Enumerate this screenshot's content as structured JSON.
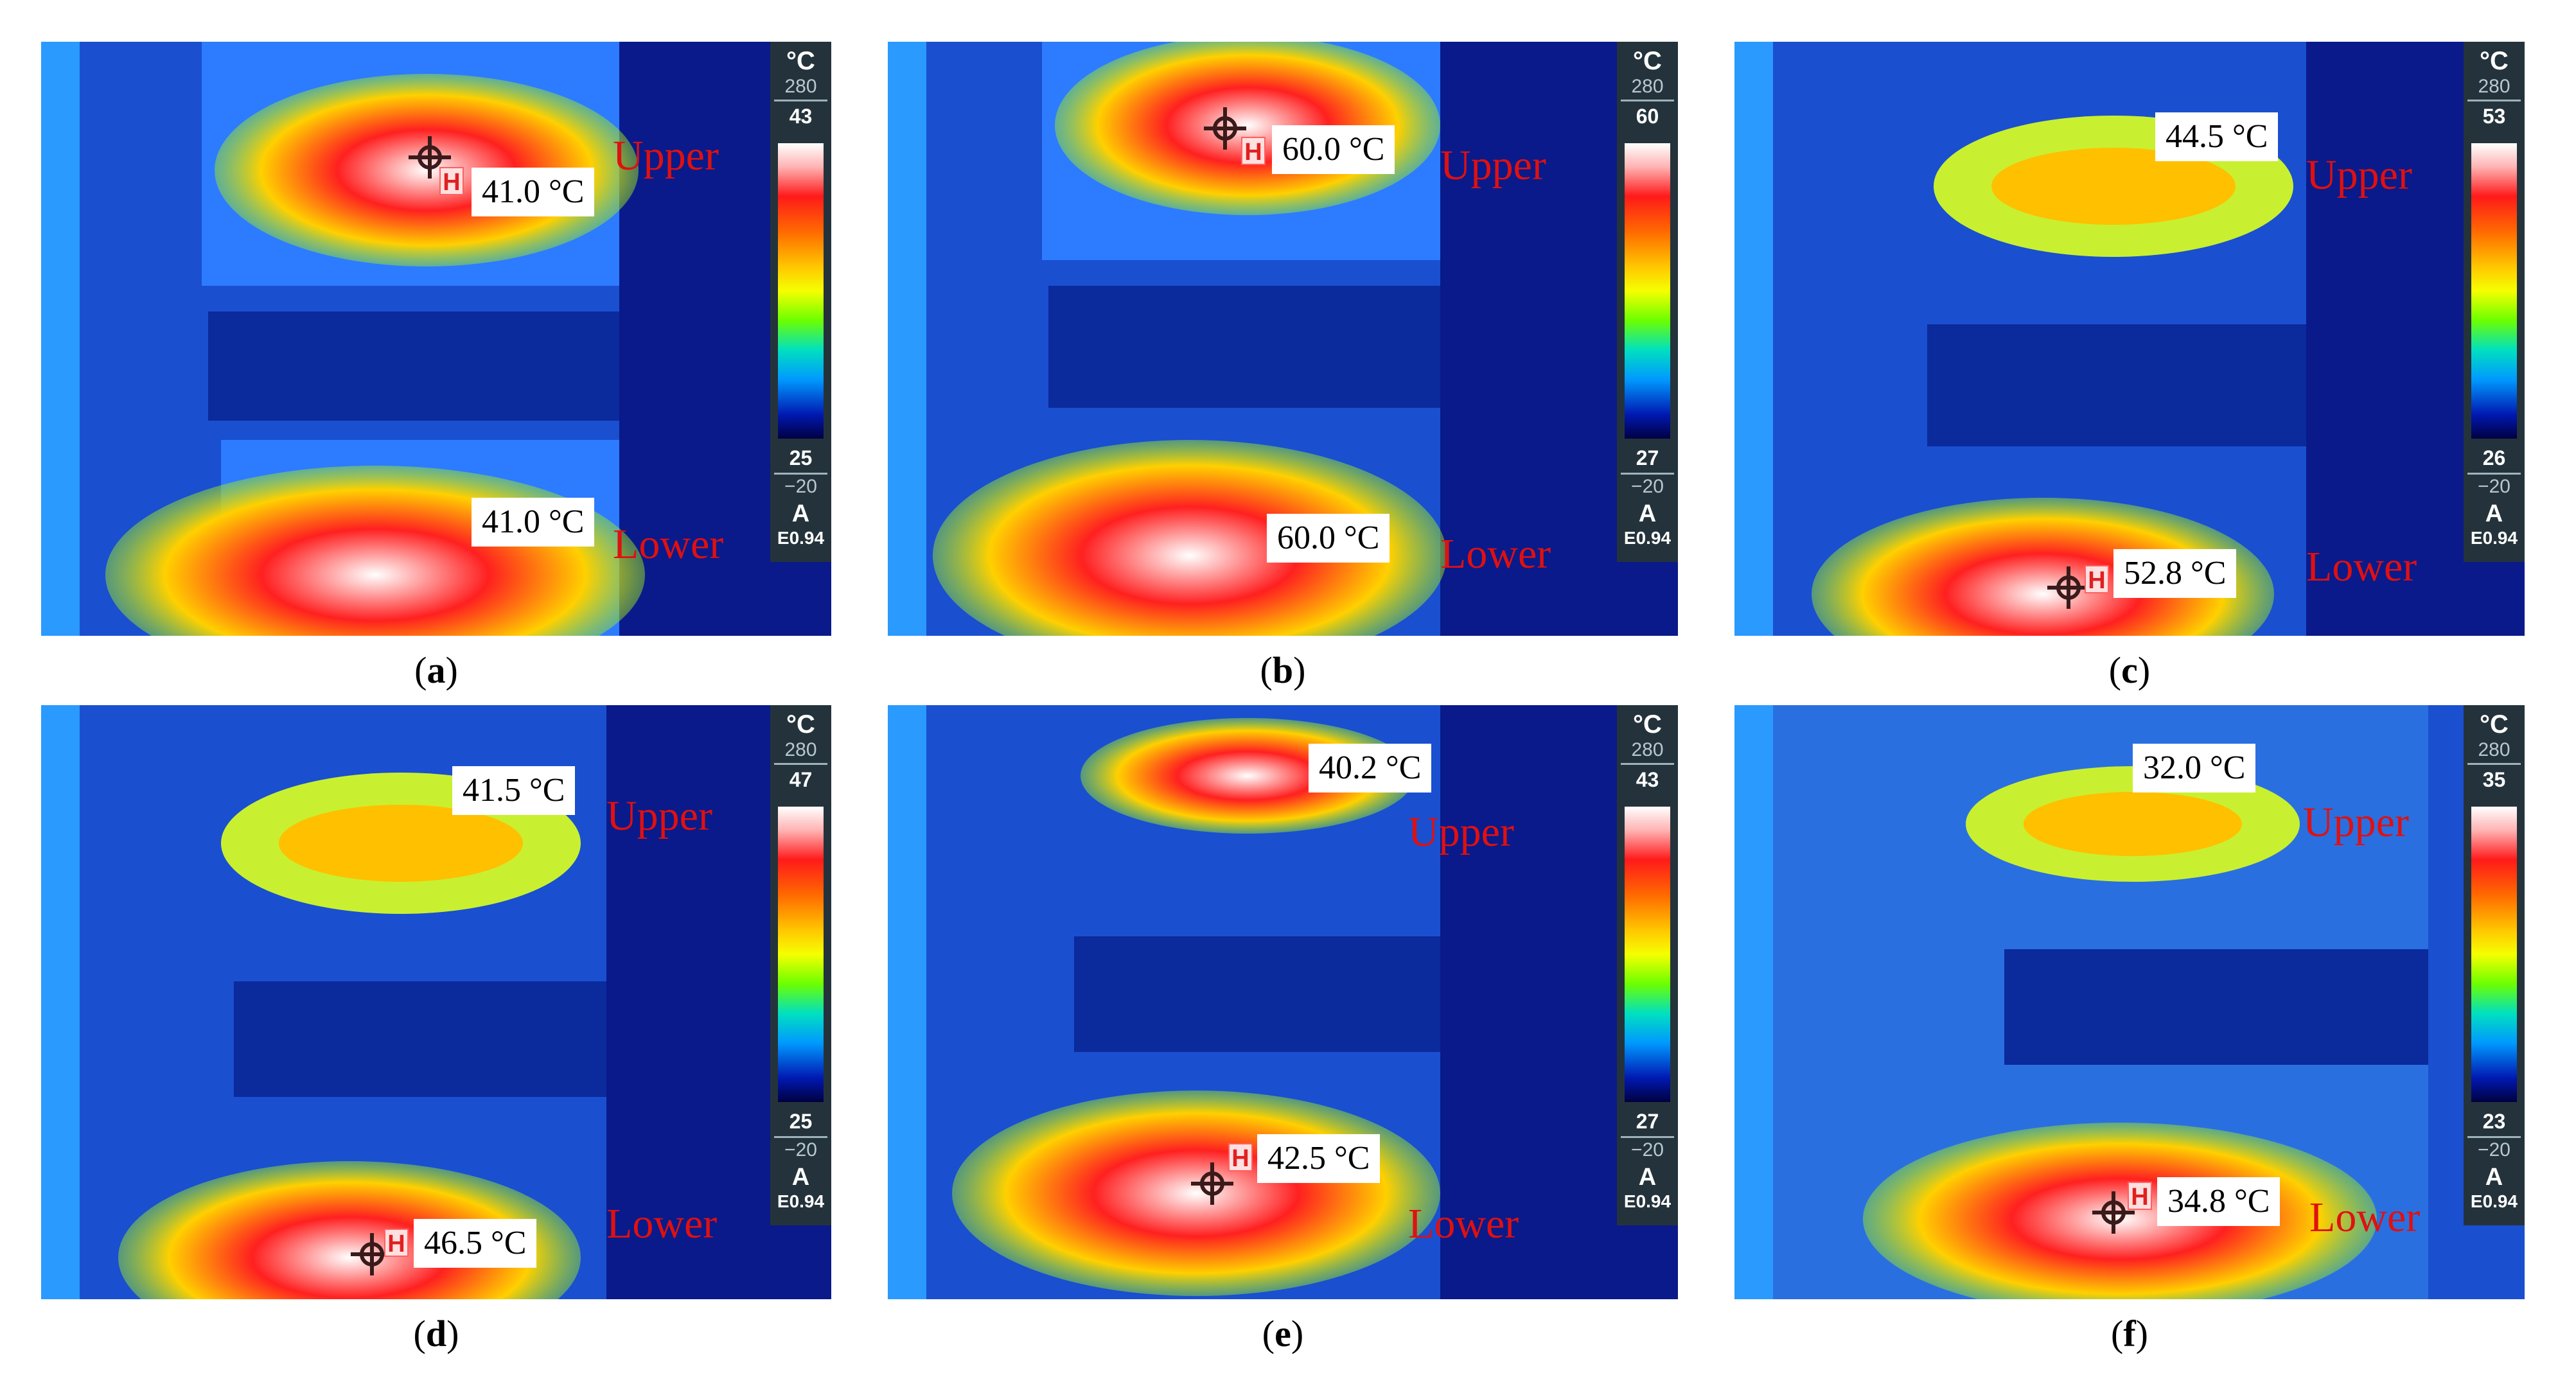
{
  "panels": [
    {
      "id": "a",
      "caption": "a",
      "scale": {
        "unit": "°C",
        "range_max": "280",
        "max": "43",
        "min": "25",
        "range_min": "−20",
        "mode": "A",
        "emissivity": "E0.94"
      },
      "upper": {
        "zone": "Upper",
        "temp": "41.0 °C"
      },
      "lower": {
        "zone": "Lower",
        "temp": "41.0 °C"
      },
      "marker_on": "upper"
    },
    {
      "id": "b",
      "caption": "b",
      "scale": {
        "unit": "°C",
        "range_max": "280",
        "max": "60",
        "min": "27",
        "range_min": "−20",
        "mode": "A",
        "emissivity": "E0.94"
      },
      "upper": {
        "zone": "Upper",
        "temp": "60.0 °C"
      },
      "lower": {
        "zone": "Lower",
        "temp": "60.0 °C"
      },
      "marker_on": "upper"
    },
    {
      "id": "c",
      "caption": "c",
      "scale": {
        "unit": "°C",
        "range_max": "280",
        "max": "53",
        "min": "26",
        "range_min": "−20",
        "mode": "A",
        "emissivity": "E0.94"
      },
      "upper": {
        "zone": "Upper",
        "temp": "44.5 °C"
      },
      "lower": {
        "zone": "Lower",
        "temp": "52.8 °C"
      },
      "marker_on": "lower"
    },
    {
      "id": "d",
      "caption": "d",
      "scale": {
        "unit": "°C",
        "range_max": "280",
        "max": "47",
        "min": "25",
        "range_min": "−20",
        "mode": "A",
        "emissivity": "E0.94"
      },
      "upper": {
        "zone": "Upper",
        "temp": "41.5 °C"
      },
      "lower": {
        "zone": "Lower",
        "temp": "46.5 °C"
      },
      "marker_on": "lower"
    },
    {
      "id": "e",
      "caption": "e",
      "scale": {
        "unit": "°C",
        "range_max": "280",
        "max": "43",
        "min": "27",
        "range_min": "−20",
        "mode": "A",
        "emissivity": "E0.94"
      },
      "upper": {
        "zone": "Upper",
        "temp": "40.2 °C"
      },
      "lower": {
        "zone": "Lower",
        "temp": "42.5 °C"
      },
      "marker_on": "lower"
    },
    {
      "id": "f",
      "caption": "f",
      "scale": {
        "unit": "°C",
        "range_max": "280",
        "max": "35",
        "min": "23",
        "range_min": "−20",
        "mode": "A",
        "emissivity": "E0.94"
      },
      "upper": {
        "zone": "Upper",
        "temp": "32.0 °C"
      },
      "lower": {
        "zone": "Lower",
        "temp": "34.8 °C"
      },
      "marker_on": "lower"
    }
  ],
  "colors": {
    "zone_label": "#e01010",
    "scale_bg": "#24333b",
    "background": "#0a1a8a"
  },
  "icons": [
    "crosshair-icon",
    "hotspot-h-icon"
  ]
}
